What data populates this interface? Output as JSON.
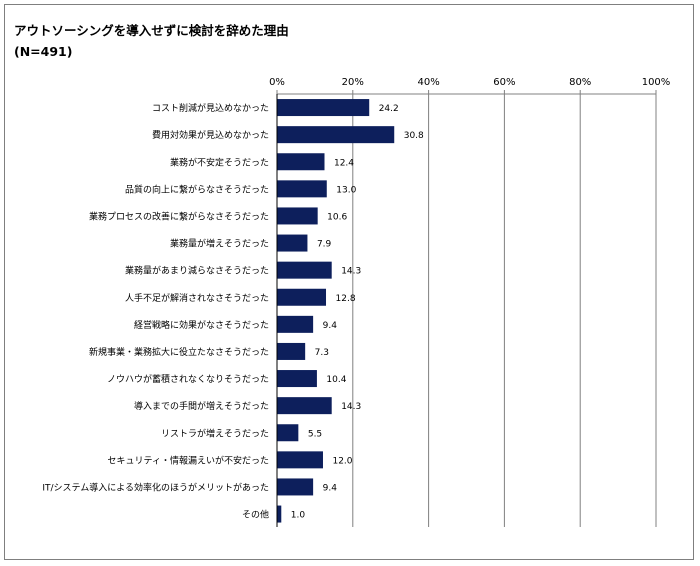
{
  "chart_data": {
    "type": "bar",
    "orientation": "horizontal",
    "title": "アウトソーシングを導入せずに検討を辞めた理由",
    "subtitle": "(N=491)",
    "categories": [
      "コスト削減が見込めなかった",
      "費用対効果が見込めなかった",
      "業務が不安定そうだった",
      "品質の向上に繋がらなさそうだった",
      "業務プロセスの改善に繋がらなさそうだった",
      "業務量が増えそうだった",
      "業務量があまり減らなさそうだった",
      "人手不足が解消されなさそうだった",
      "経営戦略に効果がなさそうだった",
      "新規事業・業務拡大に役立たなさそうだった",
      "ノウハウが蓄積されなくなりそうだった",
      "導入までの手間が増えそうだった",
      "リストラが増えそうだった",
      "セキュリティ・情報漏えいが不安だった",
      "IT/システム導入による効率化のほうがメリットがあった",
      "その他"
    ],
    "values": [
      24.2,
      30.8,
      12.4,
      13.0,
      10.6,
      7.9,
      14.3,
      12.8,
      9.4,
      7.3,
      10.4,
      14.3,
      5.5,
      12.0,
      9.4,
      1.0
    ],
    "value_labels": [
      "24.2",
      "30.8",
      "12.4",
      "13.0",
      "10.6",
      "7.9",
      "14.3",
      "12.8",
      "9.4",
      "7.3",
      "10.4",
      "14.3",
      "5.5",
      "12.0",
      "9.4",
      "1.0"
    ],
    "xlim": [
      0,
      100
    ],
    "x_ticks": [
      0,
      20,
      40,
      60,
      80,
      100
    ],
    "x_tick_labels": [
      "0%",
      "20%",
      "40%",
      "60%",
      "80%",
      "100%"
    ],
    "x_axis_position": "top",
    "grid": true,
    "bar_color": "#0d1f5c",
    "grid_color": "#808080"
  }
}
